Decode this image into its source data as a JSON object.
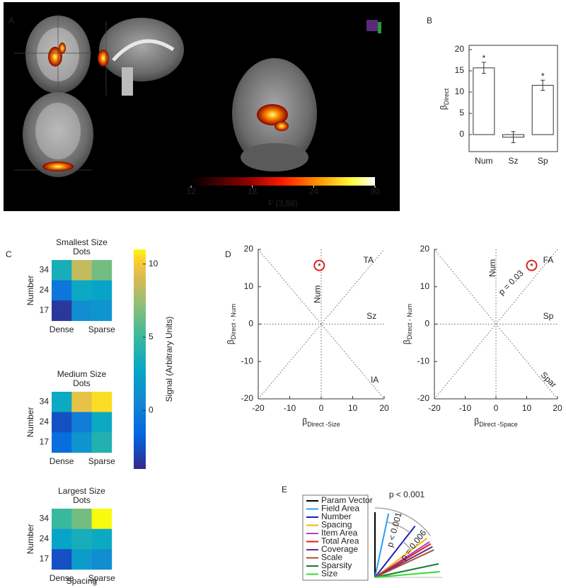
{
  "chart_data": [
    {
      "type": "brain-map",
      "panel": "A",
      "xlabel": "F (3,88)",
      "xlim": [
        12,
        30
      ],
      "xticks": [
        12,
        18,
        24,
        30
      ]
    },
    {
      "type": "bar",
      "panel": "B",
      "ylabel": {
        "symbol": "β",
        "subscript": "Direct"
      },
      "categories": [
        "Num",
        "Sz",
        "Sp"
      ],
      "values": [
        15.7,
        -0.6,
        11.6
      ],
      "errors": [
        1.3,
        1.3,
        1.2
      ],
      "significance": [
        "*",
        null,
        "*"
      ],
      "color": "#ffffff",
      "ylim": [
        -4,
        21
      ],
      "yticks": [
        0,
        5,
        10,
        15,
        20
      ]
    },
    {
      "type": "heatmap",
      "panel": "C",
      "ylabel": "Number",
      "xlabel": "Spacing",
      "rows": [
        "34",
        "24",
        "17"
      ],
      "columns": [
        "Dense",
        null,
        "Sparse"
      ],
      "maps": [
        {
          "title": [
            "Smallest Size",
            "Dots"
          ],
          "values": [
            [
              3.5,
              8.5,
              6.5
            ],
            [
              -0.5,
              3,
              2.5
            ],
            [
              -3.5,
              1,
              1.5
            ]
          ]
        },
        {
          "title": [
            "Medium Size",
            "Dots"
          ],
          "values": [
            [
              3,
              9.5,
              10.5
            ],
            [
              -2.5,
              0,
              3
            ],
            [
              -1,
              1.5,
              4
            ]
          ]
        },
        {
          "title": [
            "Largest Size",
            "Dots"
          ],
          "values": [
            [
              5,
              6.5,
              11
            ],
            [
              2.5,
              3.5,
              3
            ],
            [
              -2.5,
              2,
              1
            ]
          ]
        }
      ],
      "colorbar": {
        "label": "Signal (Arbitrary Units)",
        "clim": [
          -4,
          11
        ],
        "ticks": [
          0,
          5,
          10
        ]
      }
    },
    {
      "type": "scatter",
      "panel": "D",
      "plots": [
        {
          "x": [
            -0.6
          ],
          "y": [
            15.7
          ],
          "marker_label": "*",
          "xlabel": {
            "symbol": "β",
            "subscript": "Direct -Size"
          },
          "ylabel": {
            "symbol": "β",
            "subscript": "Direct - Num"
          },
          "xlim": [
            -20,
            20
          ],
          "ylim": [
            -20,
            20
          ],
          "xticks": [
            -20,
            -10,
            0,
            10,
            20
          ],
          "yticks": [
            -20,
            -10,
            0,
            10,
            20
          ],
          "line_labels": [
            "TA",
            "Sz",
            "IA",
            "Num"
          ]
        },
        {
          "x": [
            11.6
          ],
          "y": [
            15.7
          ],
          "marker_label": "*",
          "annotation": "p = 0.03",
          "xlabel": {
            "symbol": "β",
            "subscript": "Direct -Space"
          },
          "ylabel": {
            "symbol": "β",
            "subscript": "Direct - Num"
          },
          "xlim": [
            -20,
            20
          ],
          "ylim": [
            -20,
            20
          ],
          "xticks": [
            -20,
            -10,
            0,
            10,
            20
          ],
          "yticks": [
            -20,
            -10,
            0,
            10,
            20
          ],
          "line_labels": [
            "FA",
            "Sp",
            "Spar",
            "Num"
          ]
        }
      ]
    },
    {
      "type": "vectors",
      "panel": "E",
      "series": [
        {
          "name": "Param Vector",
          "color": "#000000",
          "angle": 90
        },
        {
          "name": "Field Area",
          "color": "#2a9df4",
          "angle": 78
        },
        {
          "name": "Number",
          "color": "#1f1fbf",
          "angle": 52
        },
        {
          "name": "Spacing",
          "color": "#f2b705",
          "angle": 37
        },
        {
          "name": "Item Area",
          "color": "#b040c0",
          "angle": 33
        },
        {
          "name": "Total Area",
          "color": "#e0201b",
          "angle": 31
        },
        {
          "name": "Coverage",
          "color": "#6a2a8a",
          "angle": 28
        },
        {
          "name": "Scale",
          "color": "#a0522d",
          "angle": 25
        },
        {
          "name": "Sparsity",
          "color": "#1a7a3a",
          "angle": 12
        },
        {
          "name": "Size",
          "color": "#33dd33",
          "angle": 5
        }
      ],
      "annotations": [
        "p < 0.001",
        "p < 0.001",
        "p = 0.006"
      ]
    }
  ]
}
